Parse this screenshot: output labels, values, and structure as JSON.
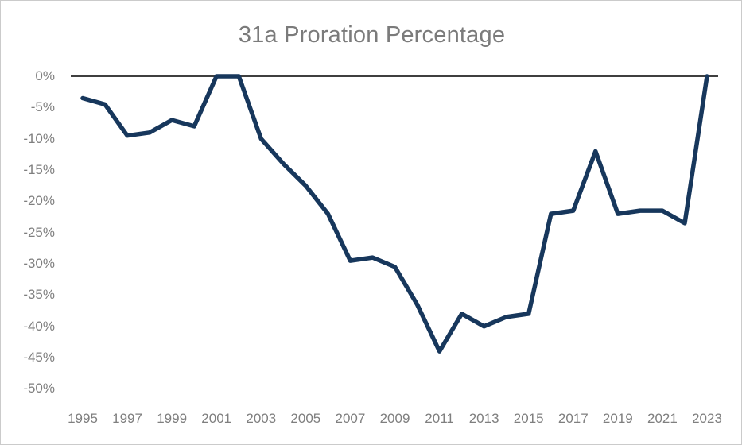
{
  "chart": {
    "title": "31a Proration Percentage"
  },
  "chart_data": {
    "type": "line",
    "title": "31a Proration Percentage",
    "series": [
      {
        "name": "31a Proration Percentage",
        "values": [
          -3.5,
          -4.5,
          -9.5,
          -9,
          -7,
          -8,
          0,
          0,
          -10,
          -14,
          -17.5,
          -22,
          -29.5,
          -29,
          -30.5,
          -36.5,
          -44,
          -38,
          -40,
          -38.5,
          -38,
          -22,
          -21.5,
          -12,
          -22,
          -21.5,
          -21.5,
          -23.5,
          0
        ]
      }
    ],
    "x": [
      1995,
      1996,
      1997,
      1998,
      1999,
      2000,
      2001,
      2002,
      2003,
      2004,
      2005,
      2006,
      2007,
      2008,
      2009,
      2010,
      2011,
      2012,
      2013,
      2014,
      2015,
      2016,
      2017,
      2018,
      2019,
      2020,
      2021,
      2022,
      2023
    ],
    "xlabel": "",
    "ylabel": "",
    "ylim": [
      -50,
      0
    ],
    "xlim": [
      1995,
      2023
    ],
    "ytick_labels": [
      "0%",
      "-5%",
      "-10%",
      "-15%",
      "-20%",
      "-25%",
      "-30%",
      "-35%",
      "-40%",
      "-45%",
      "-50%"
    ],
    "xtick_labels": [
      "1995",
      "1997",
      "1999",
      "2001",
      "2003",
      "2005",
      "2007",
      "2009",
      "2011",
      "2013",
      "2015",
      "2017",
      "2019",
      "2021",
      "2023"
    ],
    "grid": "off",
    "legend_position": "none",
    "line_color": "#17375C",
    "axis_color": "#3F3F3F",
    "tick_label_color": "#7F7F7F",
    "title_color": "#7B7B7B",
    "background_color": "#FFFFFF"
  }
}
